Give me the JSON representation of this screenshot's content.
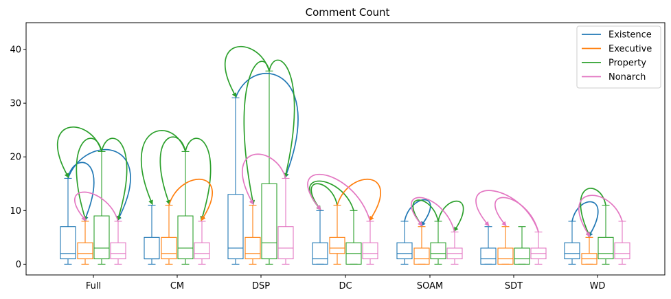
{
  "chart_data": {
    "type": "box",
    "title": "Comment Count",
    "xlabel": "",
    "ylabel": "",
    "ylim": [
      -2,
      45
    ],
    "yticks": [
      0,
      10,
      20,
      30,
      40
    ],
    "grid": false,
    "legend_position": "top-right",
    "categories": [
      "Full",
      "CM",
      "DSP",
      "DC",
      "SOAM",
      "SDT",
      "WD"
    ],
    "series": [
      {
        "name": "Existence",
        "color": "#1f77b4",
        "boxes": [
          {
            "whislo": 0,
            "q1": 1,
            "med": 2,
            "q3": 7,
            "whishi": 16
          },
          {
            "whislo": 0,
            "q1": 1,
            "med": 1,
            "q3": 5,
            "whishi": 11
          },
          {
            "whislo": 0,
            "q1": 1,
            "med": 3,
            "q3": 13,
            "whishi": 31
          },
          {
            "whislo": 0,
            "q1": 0,
            "med": 1,
            "q3": 4,
            "whishi": 10
          },
          {
            "whislo": 0,
            "q1": 1,
            "med": 2,
            "q3": 4,
            "whishi": 8
          },
          {
            "whislo": 0,
            "q1": 0,
            "med": 1,
            "q3": 3,
            "whishi": 7
          },
          {
            "whislo": 0,
            "q1": 1,
            "med": 2,
            "q3": 4,
            "whishi": 8
          }
        ]
      },
      {
        "name": "Executive",
        "color": "#ff7f0e",
        "boxes": [
          {
            "whislo": 0,
            "q1": 1,
            "med": 2,
            "q3": 4,
            "whishi": 8
          },
          {
            "whislo": 0,
            "q1": 1,
            "med": 2,
            "q3": 5,
            "whishi": 11
          },
          {
            "whislo": 0,
            "q1": 1,
            "med": 2,
            "q3": 5,
            "whishi": 11
          },
          {
            "whislo": 0,
            "q1": 2,
            "med": 3,
            "q3": 5,
            "whishi": 11
          },
          {
            "whislo": 0,
            "q1": 0,
            "med": 1,
            "q3": 3,
            "whishi": 7
          },
          {
            "whislo": 0,
            "q1": 0,
            "med": 1,
            "q3": 3,
            "whishi": 7
          },
          {
            "whislo": 0,
            "q1": 0,
            "med": 1,
            "q3": 2,
            "whishi": 5
          }
        ]
      },
      {
        "name": "Property",
        "color": "#2ca02c",
        "boxes": [
          {
            "whislo": 0,
            "q1": 1,
            "med": 3,
            "q3": 9,
            "whishi": 21
          },
          {
            "whislo": 0,
            "q1": 1,
            "med": 3,
            "q3": 9,
            "whishi": 21
          },
          {
            "whislo": 0,
            "q1": 1,
            "med": 4,
            "q3": 15,
            "whishi": 36
          },
          {
            "whislo": 0,
            "q1": 0,
            "med": 2,
            "q3": 4,
            "whishi": 10
          },
          {
            "whislo": 0,
            "q1": 1,
            "med": 2,
            "q3": 4,
            "whishi": 8
          },
          {
            "whislo": 0,
            "q1": 0,
            "med": 1,
            "q3": 3,
            "whishi": 7
          },
          {
            "whislo": 0,
            "q1": 1,
            "med": 2,
            "q3": 5,
            "whishi": 11
          }
        ]
      },
      {
        "name": "Nonarch",
        "color": "#e377c2",
        "boxes": [
          {
            "whislo": 0,
            "q1": 1,
            "med": 2,
            "q3": 4,
            "whishi": 8
          },
          {
            "whislo": 0,
            "q1": 1,
            "med": 2,
            "q3": 4,
            "whishi": 8
          },
          {
            "whislo": 0,
            "q1": 1,
            "med": 3,
            "q3": 7,
            "whishi": 16
          },
          {
            "whislo": 0,
            "q1": 1,
            "med": 2,
            "q3": 4,
            "whishi": 8
          },
          {
            "whislo": 0,
            "q1": 1,
            "med": 2,
            "q3": 3,
            "whishi": 6
          },
          {
            "whislo": 0,
            "q1": 1,
            "med": 2,
            "q3": 3,
            "whishi": 6
          },
          {
            "whislo": 0,
            "q1": 1,
            "med": 2,
            "q3": 4,
            "whishi": 8
          }
        ]
      }
    ],
    "arrows": [
      {
        "category": "Full",
        "from": "Existence",
        "to": "Executive",
        "color": "#1f77b4"
      },
      {
        "category": "Full",
        "from": "Existence",
        "to": "Nonarch",
        "color": "#1f77b4"
      },
      {
        "category": "Full",
        "from": "Property",
        "to": "Existence",
        "color": "#2ca02c"
      },
      {
        "category": "Full",
        "from": "Property",
        "to": "Executive",
        "color": "#2ca02c"
      },
      {
        "category": "Full",
        "from": "Property",
        "to": "Nonarch",
        "color": "#2ca02c"
      },
      {
        "category": "Full",
        "from": "Nonarch",
        "to": "Executive",
        "color": "#e377c2"
      },
      {
        "category": "CM",
        "from": "Property",
        "to": "Existence",
        "color": "#2ca02c"
      },
      {
        "category": "CM",
        "from": "Property",
        "to": "Executive",
        "color": "#2ca02c"
      },
      {
        "category": "CM",
        "from": "Property",
        "to": "Nonarch",
        "color": "#2ca02c"
      },
      {
        "category": "CM",
        "from": "Executive",
        "to": "Nonarch",
        "color": "#ff7f0e"
      },
      {
        "category": "DSP",
        "from": "Existence",
        "to": "Nonarch",
        "color": "#1f77b4"
      },
      {
        "category": "DSP",
        "from": "Property",
        "to": "Existence",
        "color": "#2ca02c"
      },
      {
        "category": "DSP",
        "from": "Property",
        "to": "Executive",
        "color": "#2ca02c"
      },
      {
        "category": "DSP",
        "from": "Property",
        "to": "Nonarch",
        "color": "#2ca02c"
      },
      {
        "category": "DSP",
        "from": "Nonarch",
        "to": "Executive",
        "color": "#e377c2"
      },
      {
        "category": "DC",
        "from": "Executive",
        "to": "Existence",
        "color": "#2ca02c"
      },
      {
        "category": "DC",
        "from": "Property",
        "to": "Existence",
        "color": "#2ca02c"
      },
      {
        "category": "DC",
        "from": "Executive",
        "to": "Nonarch",
        "color": "#ff7f0e"
      },
      {
        "category": "DC",
        "from": "Nonarch",
        "to": "Existence",
        "color": "#e377c2"
      },
      {
        "category": "SOAM",
        "from": "Existence",
        "to": "Executive",
        "color": "#1f77b4"
      },
      {
        "category": "SOAM",
        "from": "Property",
        "to": "Executive",
        "color": "#2ca02c"
      },
      {
        "category": "SOAM",
        "from": "Property",
        "to": "Nonarch",
        "color": "#2ca02c"
      },
      {
        "category": "SOAM",
        "from": "Nonarch",
        "to": "Executive",
        "color": "#e377c2"
      },
      {
        "category": "SDT",
        "from": "Nonarch",
        "to": "Existence",
        "color": "#e377c2"
      },
      {
        "category": "SDT",
        "from": "Nonarch",
        "to": "Executive",
        "color": "#e377c2"
      },
      {
        "category": "WD",
        "from": "Existence",
        "to": "Executive",
        "color": "#1f77b4"
      },
      {
        "category": "WD",
        "from": "Property",
        "to": "Executive",
        "color": "#2ca02c"
      },
      {
        "category": "WD",
        "from": "Nonarch",
        "to": "Executive",
        "color": "#e377c2"
      }
    ]
  }
}
